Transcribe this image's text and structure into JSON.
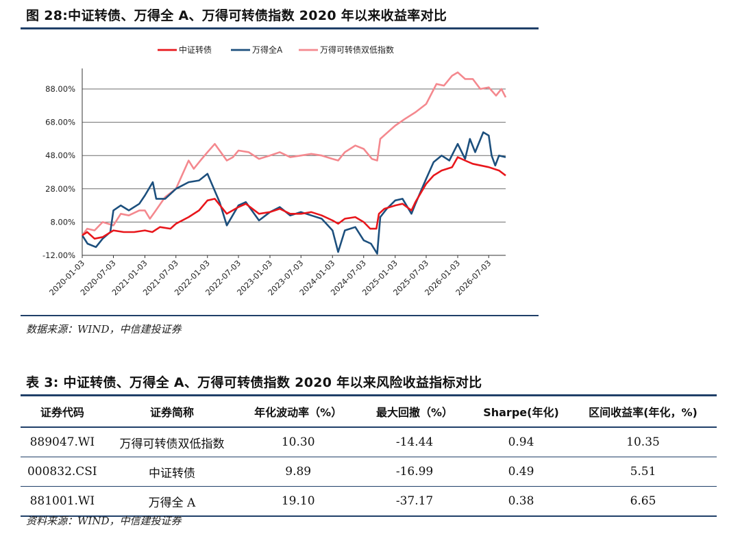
{
  "figure": {
    "title": "图 28:中证转债、万得全 A、万得可转债指数 2020 年以来收益率对比",
    "source": "数据来源：WIND，中信建投证券"
  },
  "chart_data": {
    "type": "line",
    "legend": [
      "中证转债",
      "万得全A",
      "万得可转债双低指数"
    ],
    "legend_position": "top",
    "y_ticks": [
      "-12.00%",
      "8.00%",
      "28.00%",
      "48.00%",
      "68.00%",
      "88.00%"
    ],
    "ylim": [
      -12,
      100
    ],
    "x_ticks": [
      "2020-01-03",
      "2020-07-03",
      "2021-01-03",
      "2021-07-03",
      "2022-01-03",
      "2022-07-03",
      "2023-01-03",
      "2023-07-03",
      "2024-01-03",
      "2024-07-03",
      "2025-01-03",
      "2025-07-03",
      "2026-01-03",
      "2026-07-03"
    ],
    "x_range": [
      "2020-01-03",
      "2026-10-10"
    ],
    "grid": "horizontal",
    "colors": [
      "#e8161b",
      "#1c4f7d",
      "#f4888e"
    ],
    "series": [
      {
        "name": "中证转债",
        "points": [
          [
            "2020-01-03",
            0
          ],
          [
            "2020-02-01",
            2
          ],
          [
            "2020-03-15",
            -2
          ],
          [
            "2020-05-01",
            -1
          ],
          [
            "2020-07-03",
            3
          ],
          [
            "2020-09-01",
            2
          ],
          [
            "2020-11-01",
            2
          ],
          [
            "2021-01-03",
            3
          ],
          [
            "2021-02-15",
            2
          ],
          [
            "2021-04-01",
            5
          ],
          [
            "2021-06-01",
            4
          ],
          [
            "2021-07-03",
            7
          ],
          [
            "2021-09-15",
            11
          ],
          [
            "2021-11-15",
            15
          ],
          [
            "2022-01-03",
            21
          ],
          [
            "2022-02-15",
            22
          ],
          [
            "2022-04-26",
            13
          ],
          [
            "2022-07-03",
            17
          ],
          [
            "2022-08-15",
            19
          ],
          [
            "2022-10-31",
            13
          ],
          [
            "2023-01-03",
            14
          ],
          [
            "2023-03-01",
            16
          ],
          [
            "2023-05-01",
            13
          ],
          [
            "2023-07-03",
            13
          ],
          [
            "2023-09-01",
            14
          ],
          [
            "2023-11-01",
            12
          ],
          [
            "2024-01-03",
            9
          ],
          [
            "2024-02-05",
            7
          ],
          [
            "2024-03-15",
            10
          ],
          [
            "2024-05-15",
            11
          ],
          [
            "2024-07-03",
            8
          ],
          [
            "2024-08-10",
            4
          ],
          [
            "2024-09-15",
            4
          ],
          [
            "2024-09-30",
            13
          ],
          [
            "2024-11-01",
            16
          ],
          [
            "2025-01-03",
            18
          ],
          [
            "2025-02-15",
            19
          ],
          [
            "2025-04-08",
            15
          ],
          [
            "2025-05-01",
            20
          ],
          [
            "2025-07-03",
            31
          ],
          [
            "2025-08-15",
            36
          ],
          [
            "2025-10-01",
            39
          ],
          [
            "2025-12-01",
            41
          ],
          [
            "2026-01-03",
            47
          ],
          [
            "2026-02-15",
            45
          ],
          [
            "2026-04-01",
            43
          ],
          [
            "2026-07-03",
            41
          ],
          [
            "2026-09-01",
            39
          ],
          [
            "2026-10-10",
            36
          ]
        ]
      },
      {
        "name": "万得全A",
        "points": [
          [
            "2020-01-03",
            0
          ],
          [
            "2020-02-03",
            -5
          ],
          [
            "2020-03-23",
            -7
          ],
          [
            "2020-05-01",
            -2
          ],
          [
            "2020-06-15",
            2
          ],
          [
            "2020-07-03",
            15
          ],
          [
            "2020-08-15",
            18
          ],
          [
            "2020-10-01",
            15
          ],
          [
            "2020-12-01",
            19
          ],
          [
            "2021-01-03",
            24
          ],
          [
            "2021-02-18",
            32
          ],
          [
            "2021-03-10",
            22
          ],
          [
            "2021-05-01",
            22
          ],
          [
            "2021-07-03",
            28
          ],
          [
            "2021-09-15",
            32
          ],
          [
            "2021-11-15",
            33
          ],
          [
            "2022-01-03",
            37
          ],
          [
            "2022-03-15",
            20
          ],
          [
            "2022-04-26",
            6
          ],
          [
            "2022-07-03",
            18
          ],
          [
            "2022-08-15",
            20
          ],
          [
            "2022-10-31",
            9
          ],
          [
            "2023-01-03",
            14
          ],
          [
            "2023-03-01",
            17
          ],
          [
            "2023-05-01",
            12
          ],
          [
            "2023-07-03",
            14
          ],
          [
            "2023-09-01",
            12
          ],
          [
            "2023-11-01",
            10
          ],
          [
            "2024-01-03",
            3
          ],
          [
            "2024-02-05",
            -10
          ],
          [
            "2024-03-15",
            3
          ],
          [
            "2024-05-15",
            5
          ],
          [
            "2024-07-03",
            -3
          ],
          [
            "2024-08-15",
            -5
          ],
          [
            "2024-09-20",
            -11
          ],
          [
            "2024-10-08",
            11
          ],
          [
            "2024-11-15",
            16
          ],
          [
            "2025-01-03",
            21
          ],
          [
            "2025-02-15",
            22
          ],
          [
            "2025-04-08",
            13
          ],
          [
            "2025-05-01",
            19
          ],
          [
            "2025-07-03",
            34
          ],
          [
            "2025-08-15",
            44
          ],
          [
            "2025-10-01",
            48
          ],
          [
            "2025-11-15",
            45
          ],
          [
            "2026-01-03",
            55
          ],
          [
            "2026-02-15",
            46
          ],
          [
            "2026-03-15",
            58
          ],
          [
            "2026-04-15",
            50
          ],
          [
            "2026-06-01",
            62
          ],
          [
            "2026-07-03",
            60
          ],
          [
            "2026-07-20",
            48
          ],
          [
            "2026-08-10",
            42
          ],
          [
            "2026-09-01",
            48
          ],
          [
            "2026-10-10",
            47
          ]
        ]
      },
      {
        "name": "万得可转债双低指数",
        "points": [
          [
            "2020-01-03",
            0
          ],
          [
            "2020-02-01",
            4
          ],
          [
            "2020-03-15",
            3
          ],
          [
            "2020-05-01",
            8
          ],
          [
            "2020-07-03",
            6
          ],
          [
            "2020-08-15",
            13
          ],
          [
            "2020-10-01",
            12
          ],
          [
            "2020-12-01",
            15
          ],
          [
            "2021-01-03",
            15
          ],
          [
            "2021-02-01",
            10
          ],
          [
            "2021-03-01",
            14
          ],
          [
            "2021-05-01",
            23
          ],
          [
            "2021-07-03",
            28
          ],
          [
            "2021-09-15",
            45
          ],
          [
            "2021-10-15",
            40
          ],
          [
            "2021-12-01",
            46
          ],
          [
            "2022-01-03",
            50
          ],
          [
            "2022-02-15",
            55
          ],
          [
            "2022-04-26",
            45
          ],
          [
            "2022-06-01",
            47
          ],
          [
            "2022-07-03",
            51
          ],
          [
            "2022-09-01",
            50
          ],
          [
            "2022-10-31",
            46
          ],
          [
            "2023-01-03",
            48
          ],
          [
            "2023-03-01",
            50
          ],
          [
            "2023-05-01",
            47
          ],
          [
            "2023-07-03",
            48
          ],
          [
            "2023-09-01",
            49
          ],
          [
            "2023-11-01",
            48
          ],
          [
            "2024-01-03",
            46
          ],
          [
            "2024-02-05",
            45
          ],
          [
            "2024-03-15",
            50
          ],
          [
            "2024-05-15",
            54
          ],
          [
            "2024-07-03",
            52
          ],
          [
            "2024-08-20",
            46
          ],
          [
            "2024-09-20",
            45
          ],
          [
            "2024-10-08",
            58
          ],
          [
            "2024-12-01",
            63
          ],
          [
            "2025-01-03",
            66
          ],
          [
            "2025-03-01",
            70
          ],
          [
            "2025-05-01",
            74
          ],
          [
            "2025-07-03",
            79
          ],
          [
            "2025-09-01",
            91
          ],
          [
            "2025-10-15",
            90
          ],
          [
            "2025-12-01",
            96
          ],
          [
            "2026-01-03",
            98
          ],
          [
            "2026-02-15",
            94
          ],
          [
            "2026-04-01",
            94
          ],
          [
            "2026-05-15",
            88
          ],
          [
            "2026-07-03",
            89
          ],
          [
            "2026-08-15",
            84
          ],
          [
            "2026-09-15",
            88
          ],
          [
            "2026-10-10",
            83
          ]
        ]
      }
    ]
  },
  "table": {
    "title": "表 3: 中证转债、万得全 A、万得可转债指数 2020 年以来风险收益指标对比",
    "headers": [
      "证券代码",
      "证券简称",
      "年化波动率（%）",
      "最大回撤（%）",
      "Sharpe(年化)",
      "区间收益率(年化，%)"
    ],
    "rows": [
      [
        "889047.WI",
        "万得可转债双低指数",
        "10.30",
        "-14.44",
        "0.94",
        "10.35"
      ],
      [
        "000832.CSI",
        "中证转债",
        "9.89",
        "-16.99",
        "0.49",
        "5.51"
      ],
      [
        "881001.WI",
        "万得全 A",
        "19.10",
        "-37.17",
        "0.38",
        "6.65"
      ]
    ],
    "source": "资料来源：WIND，中信建投证券"
  }
}
